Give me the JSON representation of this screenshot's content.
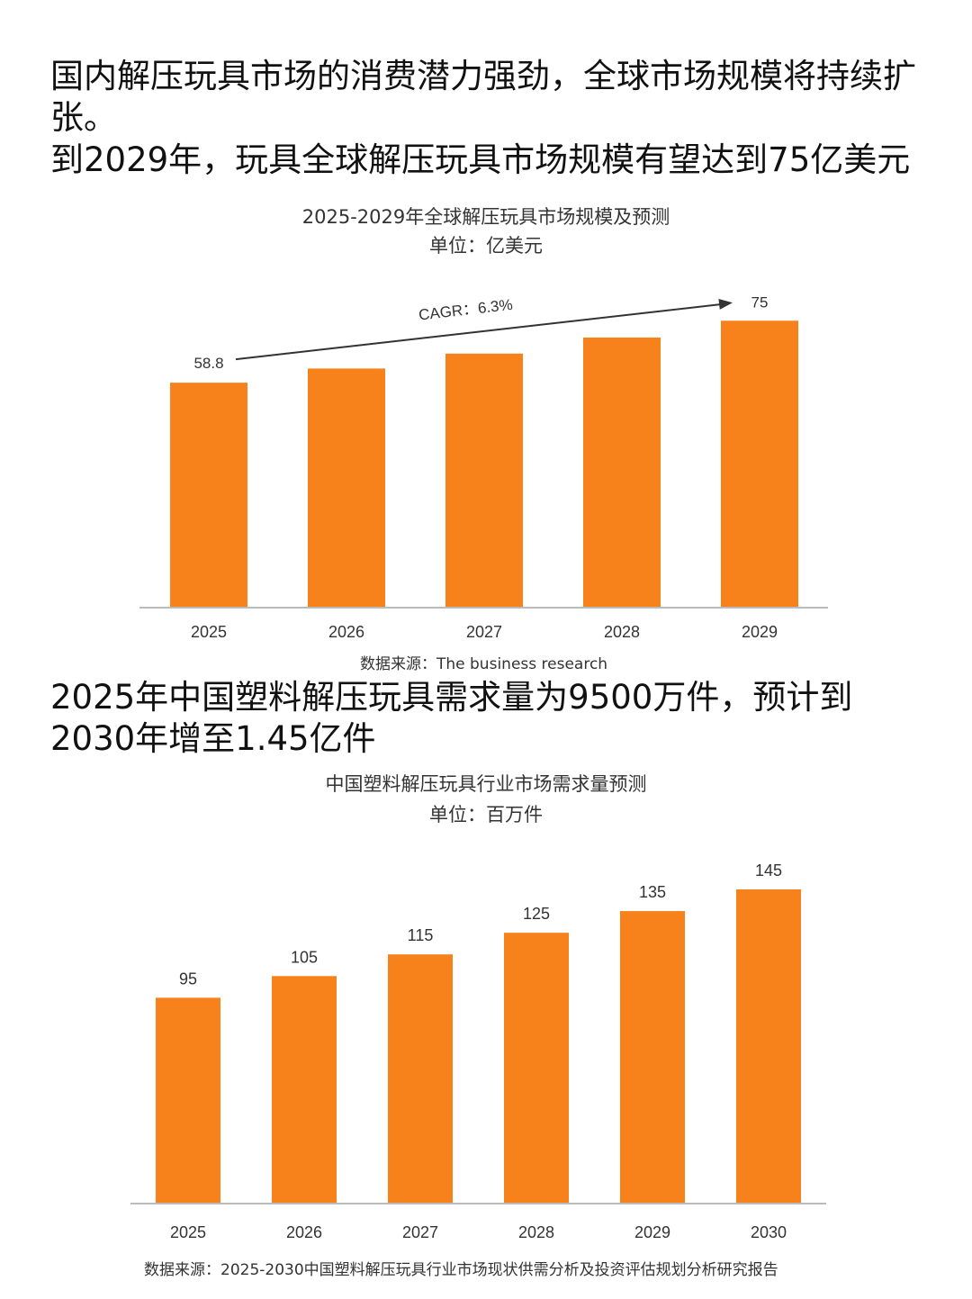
{
  "text": {
    "heading1": "国内解压玩具市场的消费潜力强劲，全球市场规模将持续扩张。",
    "heading2": "到2029年，玩具全球解压玩具市场规模有望达到75亿美元",
    "heading3": "2025年中国塑料解压玩具需求量为9500万件，预计到2030年增至1.45亿件"
  },
  "colors": {
    "bar": "#F7821B",
    "axis": "#BBBBBB",
    "text": "#333333"
  },
  "chart_data": [
    {
      "type": "bar",
      "title": "2025-2029年全球解压玩具市场规模及预测",
      "subtitle": "单位：亿美元",
      "categories": [
        "2025",
        "2026",
        "2027",
        "2028",
        "2029"
      ],
      "values": [
        58.8,
        62.5,
        66.4,
        70.6,
        75
      ],
      "data_labels": [
        "58.8",
        "",
        "",
        "",
        "75"
      ],
      "annotation": "CAGR：6.3%",
      "ylim": [
        0,
        80
      ],
      "grid": false,
      "source": "数据来源：The business research"
    },
    {
      "type": "bar",
      "title": "中国塑料解压玩具行业市场需求量预测",
      "subtitle": "单位：百万件",
      "categories": [
        "2025",
        "2026",
        "2027",
        "2028",
        "2029",
        "2030"
      ],
      "values": [
        95,
        105,
        115,
        125,
        135,
        145
      ],
      "data_labels": [
        "95",
        "105",
        "115",
        "125",
        "135",
        "145"
      ],
      "ylim": [
        0,
        145
      ],
      "grid": false,
      "source": "数据来源：2025-2030中国塑料解压玩具行业市场现状供需分析及投资评估规划分析研究报告"
    }
  ]
}
